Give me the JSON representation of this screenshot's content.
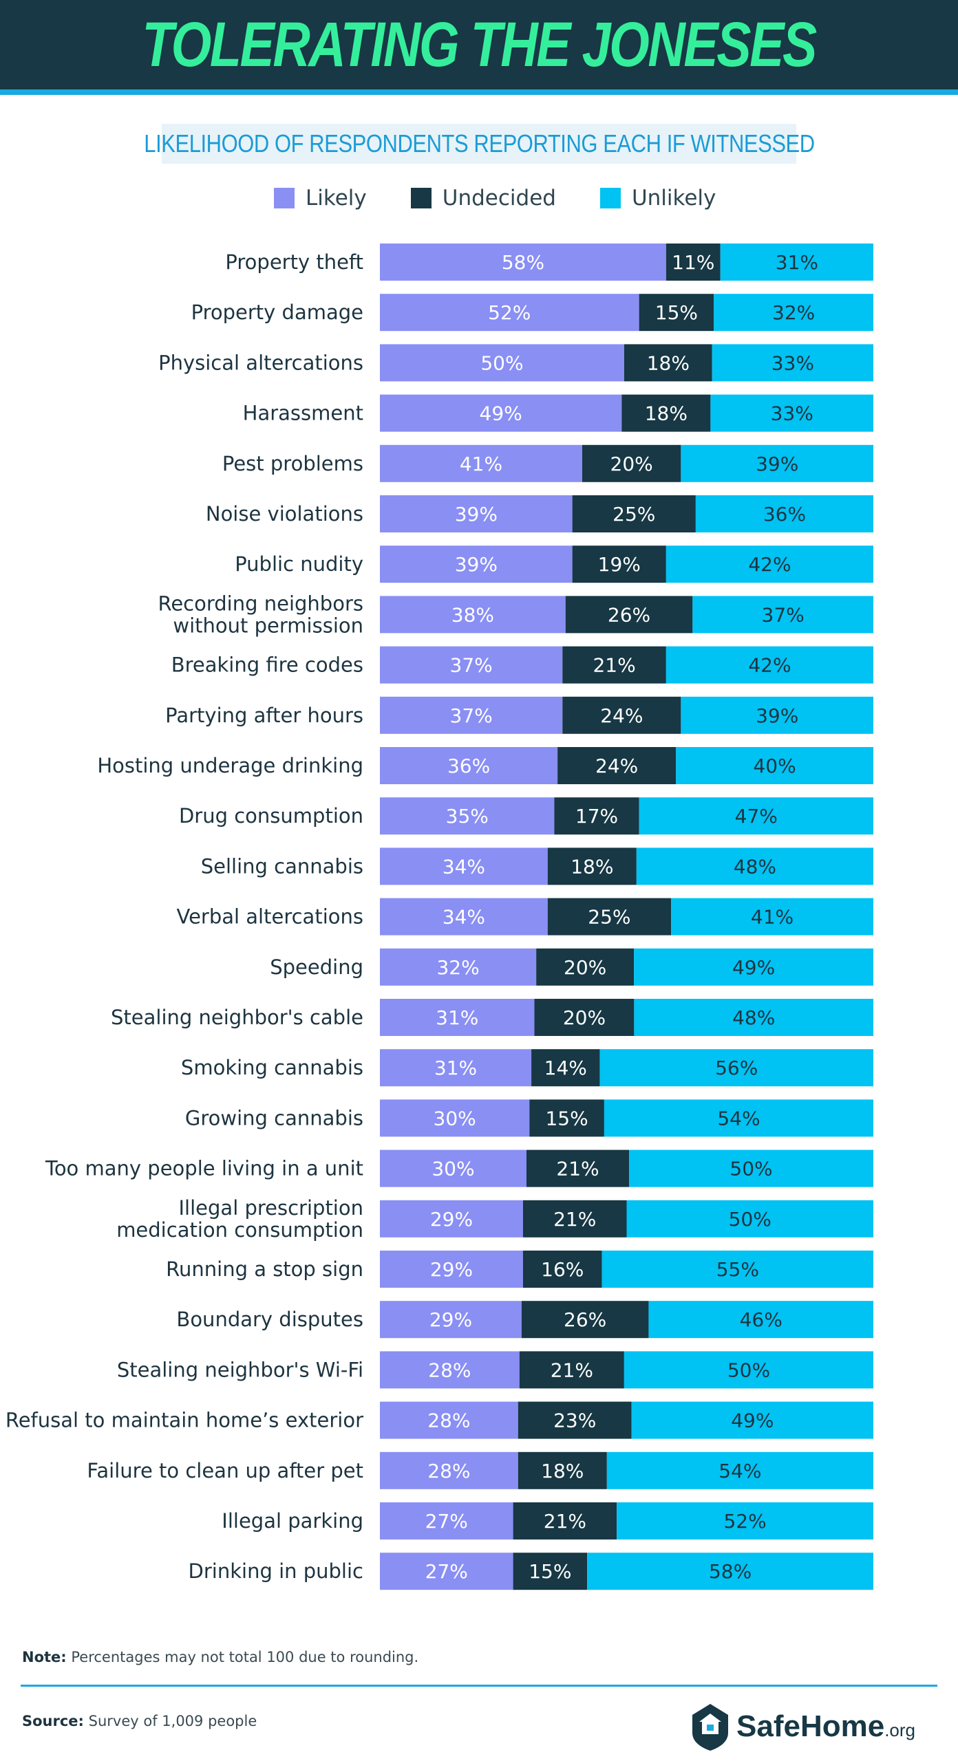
{
  "header": {
    "title": "TOLERATING THE JONESES"
  },
  "subtitle": "LIKELIHOOD OF RESPONDENTS REPORTING EACH IF WITNESSED",
  "colors": {
    "likely": "#8a8ff4",
    "undecided": "#173844",
    "unlikely": "#00c2f3"
  },
  "chart_data": {
    "type": "bar",
    "orientation": "horizontal",
    "stacked": true,
    "title": "LIKELIHOOD OF RESPONDENTS REPORTING EACH IF WITNESSED",
    "legend": [
      "Likely",
      "Undecided",
      "Unlikely"
    ],
    "legend_position": "top",
    "categories": [
      "Property theft",
      "Property damage",
      "Physical altercations",
      "Harassment",
      "Pest problems",
      "Noise violations",
      "Public nudity",
      "Recording neighbors\nwithout permission",
      "Breaking fire codes",
      "Partying after hours",
      "Hosting underage drinking",
      "Drug consumption",
      "Selling cannabis",
      "Verbal altercations",
      "Speeding",
      "Stealing neighbor's cable",
      "Smoking cannabis",
      "Growing cannabis",
      "Too many people living in a unit",
      "Illegal prescription\nmedication consumption",
      "Running a stop sign",
      "Boundary disputes",
      "Stealing neighbor's Wi-Fi",
      "Refusal to maintain home’s exterior",
      "Failure to clean up after pet",
      "Illegal parking",
      "Drinking in public"
    ],
    "series": [
      {
        "name": "Likely",
        "values": [
          58,
          52,
          50,
          49,
          41,
          39,
          39,
          38,
          37,
          37,
          36,
          35,
          34,
          34,
          32,
          31,
          31,
          30,
          30,
          29,
          29,
          29,
          28,
          28,
          28,
          27,
          27
        ]
      },
      {
        "name": "Undecided",
        "values": [
          11,
          15,
          18,
          18,
          20,
          25,
          19,
          26,
          21,
          24,
          24,
          17,
          18,
          25,
          20,
          20,
          14,
          15,
          21,
          21,
          16,
          26,
          21,
          23,
          18,
          21,
          15
        ]
      },
      {
        "name": "Unlikely",
        "values": [
          31,
          32,
          33,
          33,
          39,
          36,
          42,
          37,
          42,
          39,
          40,
          47,
          48,
          41,
          49,
          48,
          56,
          54,
          50,
          50,
          55,
          46,
          50,
          49,
          54,
          52,
          58
        ]
      }
    ],
    "unit": "%"
  },
  "footer": {
    "note_label": "Note:",
    "note_text": "Percentages may not total 100 due to rounding.",
    "source_label": "Source:",
    "source_text": "Survey of 1,009 people",
    "logo_main": "SafeHome",
    "logo_suffix": ".org"
  }
}
